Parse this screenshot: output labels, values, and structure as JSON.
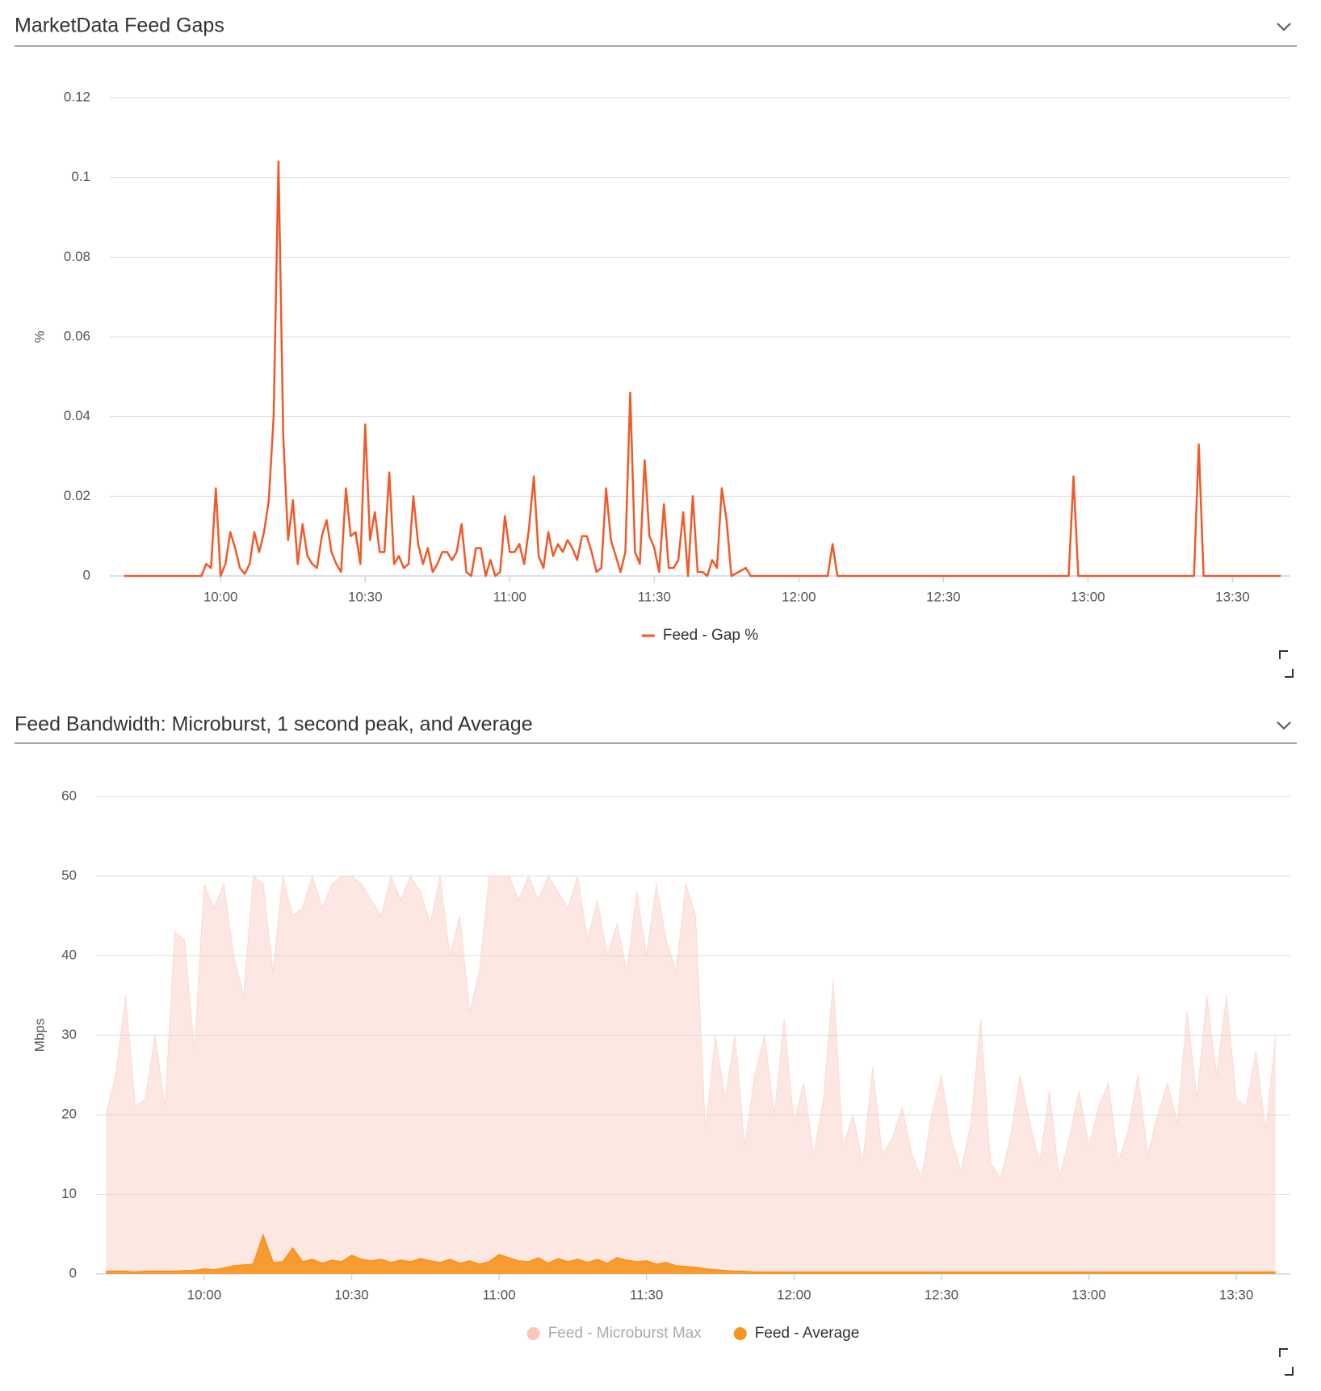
{
  "chart_data": [
    {
      "type": "line",
      "title": "MarketData Feed Gaps",
      "y_label": "%",
      "xlim": [
        "09:37",
        "13:42"
      ],
      "xticks": [
        "10:00",
        "10:30",
        "11:00",
        "11:30",
        "12:00",
        "12:30",
        "13:00",
        "13:30"
      ],
      "ylim": [
        0,
        0.12
      ],
      "yticks": [
        0,
        0.02,
        0.04,
        0.06,
        0.08,
        0.1,
        0.12
      ],
      "grid": true,
      "x": [
        "09:40",
        "09:56",
        "09:57",
        "09:58",
        "09:59",
        "10:00",
        "10:01",
        "10:02",
        "10:03",
        "10:04",
        "10:05",
        "10:06",
        "10:07",
        "10:08",
        "10:09",
        "10:10",
        "10:11",
        "10:12",
        "10:13",
        "10:14",
        "10:15",
        "10:16",
        "10:17",
        "10:18",
        "10:19",
        "10:20",
        "10:21",
        "10:22",
        "10:23",
        "10:24",
        "10:25",
        "10:26",
        "10:27",
        "10:28",
        "10:29",
        "10:30",
        "10:31",
        "10:32",
        "10:33",
        "10:34",
        "10:35",
        "10:36",
        "10:37",
        "10:38",
        "10:39",
        "10:40",
        "10:41",
        "10:42",
        "10:43",
        "10:44",
        "10:45",
        "10:46",
        "10:47",
        "10:48",
        "10:49",
        "10:50",
        "10:51",
        "10:52",
        "10:53",
        "10:54",
        "10:55",
        "10:56",
        "10:57",
        "10:58",
        "10:59",
        "11:00",
        "11:01",
        "11:02",
        "11:03",
        "11:04",
        "11:05",
        "11:06",
        "11:07",
        "11:08",
        "11:09",
        "11:10",
        "11:11",
        "11:12",
        "11:13",
        "11:14",
        "11:15",
        "11:16",
        "11:17",
        "11:18",
        "11:19",
        "11:20",
        "11:21",
        "11:22",
        "11:23",
        "11:24",
        "11:25",
        "11:26",
        "11:27",
        "11:28",
        "11:29",
        "11:30",
        "11:31",
        "11:32",
        "11:33",
        "11:34",
        "11:35",
        "11:36",
        "11:37",
        "11:38",
        "11:39",
        "11:40",
        "11:41",
        "11:42",
        "11:43",
        "11:44",
        "11:45",
        "11:46",
        "11:49",
        "11:50",
        "12:06",
        "12:07",
        "12:08",
        "12:56",
        "12:57",
        "12:58",
        "13:22",
        "13:23",
        "13:24",
        "13:40"
      ],
      "series": [
        {
          "name": "Feed - Gap %",
          "color": "#ef5a2a",
          "values": [
            0,
            0,
            0.003,
            0.002,
            0.022,
            0,
            0.003,
            0.011,
            0.007,
            0.002,
            0.0005,
            0.003,
            0.011,
            0.006,
            0.011,
            0.019,
            0.04,
            0.104,
            0.035,
            0.009,
            0.019,
            0.003,
            0.013,
            0.005,
            0.003,
            0.002,
            0.01,
            0.014,
            0.006,
            0.003,
            0.001,
            0.022,
            0.01,
            0.011,
            0.003,
            0.038,
            0.009,
            0.016,
            0.006,
            0.006,
            0.026,
            0.003,
            0.005,
            0.002,
            0.003,
            0.02,
            0.008,
            0.003,
            0.007,
            0.001,
            0.003,
            0.006,
            0.006,
            0.004,
            0.006,
            0.013,
            0.001,
            0,
            0.007,
            0.007,
            0,
            0.004,
            0,
            0.001,
            0.015,
            0.006,
            0.006,
            0.008,
            0.003,
            0.012,
            0.025,
            0.005,
            0.002,
            0.011,
            0.005,
            0.008,
            0.006,
            0.009,
            0.007,
            0.004,
            0.01,
            0.01,
            0.006,
            0.001,
            0.002,
            0.022,
            0.009,
            0.005,
            0.001,
            0.006,
            0.046,
            0.006,
            0.003,
            0.029,
            0.01,
            0.007,
            0.001,
            0.018,
            0.002,
            0.002,
            0.004,
            0.016,
            0,
            0.02,
            0.001,
            0.001,
            0,
            0.004,
            0.002,
            0.022,
            0.014,
            0,
            0.002,
            0,
            0,
            0.008,
            0,
            0,
            0.025,
            0,
            0,
            0.033,
            0,
            0
          ]
        }
      ]
    },
    {
      "type": "area",
      "title": "Feed Bandwidth: Microburst, 1 second peak, and Average",
      "y_label": "Mbps",
      "xlim": [
        "09:38",
        "13:41"
      ],
      "xticks": [
        "10:00",
        "10:30",
        "11:00",
        "11:30",
        "12:00",
        "12:30",
        "13:00",
        "13:30"
      ],
      "ylim": [
        0,
        60
      ],
      "yticks": [
        0,
        10,
        20,
        30,
        40,
        50,
        60
      ],
      "grid": true,
      "x": [
        "09:40",
        "09:42",
        "09:44",
        "09:46",
        "09:48",
        "09:50",
        "09:52",
        "09:54",
        "09:56",
        "09:58",
        "10:00",
        "10:02",
        "10:04",
        "10:06",
        "10:08",
        "10:10",
        "10:12",
        "10:14",
        "10:16",
        "10:18",
        "10:20",
        "10:22",
        "10:24",
        "10:26",
        "10:28",
        "10:30",
        "10:32",
        "10:34",
        "10:36",
        "10:38",
        "10:40",
        "10:42",
        "10:44",
        "10:46",
        "10:48",
        "10:50",
        "10:52",
        "10:54",
        "10:56",
        "10:58",
        "11:00",
        "11:02",
        "11:04",
        "11:06",
        "11:08",
        "11:10",
        "11:12",
        "11:14",
        "11:16",
        "11:18",
        "11:20",
        "11:22",
        "11:24",
        "11:26",
        "11:28",
        "11:30",
        "11:32",
        "11:34",
        "11:36",
        "11:38",
        "11:40",
        "11:42",
        "11:44",
        "11:46",
        "11:48",
        "11:50",
        "11:52",
        "11:54",
        "11:56",
        "11:58",
        "12:00",
        "12:02",
        "12:04",
        "12:06",
        "12:08",
        "12:10",
        "12:12",
        "12:14",
        "12:16",
        "12:18",
        "12:20",
        "12:22",
        "12:24",
        "12:26",
        "12:28",
        "12:30",
        "12:32",
        "12:34",
        "12:36",
        "12:38",
        "12:40",
        "12:42",
        "12:44",
        "12:46",
        "12:48",
        "12:50",
        "12:52",
        "12:54",
        "12:56",
        "12:58",
        "13:00",
        "13:02",
        "13:04",
        "13:06",
        "13:08",
        "13:10",
        "13:12",
        "13:14",
        "13:16",
        "13:18",
        "13:20",
        "13:22",
        "13:24",
        "13:26",
        "13:28",
        "13:30",
        "13:32",
        "13:34",
        "13:36",
        "13:38"
      ],
      "series": [
        {
          "name": "Feed - Microburst Max",
          "color": "#f9c6b9",
          "values": [
            20,
            25,
            35,
            21,
            22,
            30,
            21,
            43,
            42,
            28,
            49,
            46,
            49,
            40,
            35,
            50,
            49,
            38,
            50,
            45,
            46,
            50,
            46,
            49,
            50,
            50,
            49,
            47,
            45,
            50,
            47,
            50,
            48,
            44,
            50,
            40,
            45,
            33,
            38,
            50,
            50,
            50,
            47,
            50,
            47,
            50,
            48,
            46,
            50,
            42,
            47,
            40,
            44,
            38,
            48,
            40,
            49,
            42,
            38,
            49,
            45,
            18,
            30,
            22,
            30,
            16,
            25,
            30,
            20,
            32,
            19,
            24,
            15,
            22,
            37,
            16,
            20,
            14,
            26,
            15,
            17,
            21,
            15,
            12,
            20,
            25,
            17,
            13,
            19,
            32,
            14,
            12,
            17,
            25,
            19,
            14,
            23,
            12,
            17,
            23,
            16,
            21,
            24,
            14,
            18,
            25,
            15,
            20,
            24,
            19,
            33,
            22,
            35,
            25,
            35,
            22,
            21,
            28,
            18,
            30
          ]
        },
        {
          "name": "Feed - Average",
          "color": "#f7941e",
          "values": [
            0.3,
            0.3,
            0.3,
            0.2,
            0.3,
            0.3,
            0.3,
            0.3,
            0.4,
            0.4,
            0.6,
            0.5,
            0.7,
            1.0,
            1.1,
            1.2,
            4.8,
            1.4,
            1.5,
            3.2,
            1.5,
            1.8,
            1.3,
            1.7,
            1.5,
            2.3,
            1.8,
            1.6,
            1.8,
            1.4,
            1.7,
            1.5,
            1.9,
            1.6,
            1.4,
            1.8,
            1.3,
            1.6,
            1.2,
            1.5,
            2.4,
            2.0,
            1.6,
            1.5,
            2.0,
            1.3,
            1.9,
            1.5,
            1.8,
            1.4,
            1.8,
            1.3,
            2.0,
            1.7,
            1.5,
            1.6,
            1.2,
            1.4,
            1.0,
            0.9,
            0.8,
            0.6,
            0.5,
            0.4,
            0.3,
            0.3,
            0.2,
            0.2,
            0.2,
            0.2,
            0.2,
            0.2,
            0.2,
            0.2,
            0.2,
            0.2,
            0.2,
            0.2,
            0.2,
            0.2,
            0.2,
            0.2,
            0.2,
            0.2,
            0.2,
            0.2,
            0.2,
            0.2,
            0.2,
            0.2,
            0.2,
            0.2,
            0.2,
            0.2,
            0.2,
            0.2,
            0.2,
            0.2,
            0.2,
            0.2,
            0.2,
            0.2,
            0.2,
            0.2,
            0.2,
            0.2,
            0.2,
            0.2,
            0.2,
            0.2,
            0.2,
            0.2,
            0.2,
            0.2,
            0.2,
            0.2,
            0.2,
            0.2,
            0.2,
            0.2
          ]
        }
      ]
    }
  ]
}
